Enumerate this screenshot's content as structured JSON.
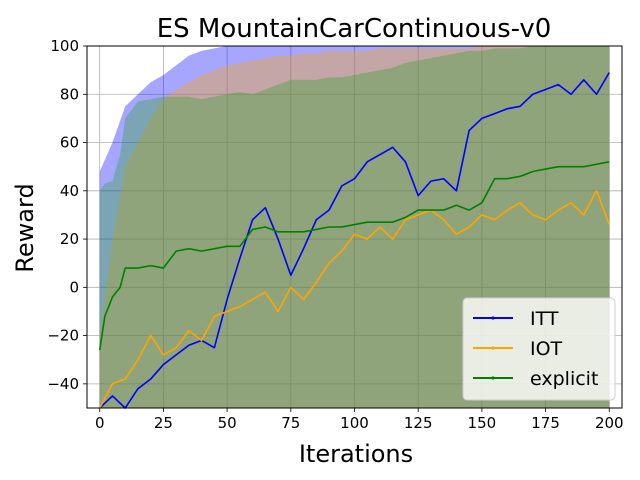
{
  "chart_data": {
    "type": "line",
    "title": "ES MountainCarContinuous-v0",
    "xlabel": "Iterations",
    "ylabel": "Reward",
    "xlim": [
      -5,
      205
    ],
    "ylim": [
      -50,
      100
    ],
    "xticks": [
      0,
      25,
      50,
      75,
      100,
      125,
      150,
      175,
      200
    ],
    "yticks": [
      -40,
      -20,
      0,
      20,
      40,
      60,
      80,
      100
    ],
    "xtick_labels": [
      "0",
      "25",
      "50",
      "75",
      "100",
      "125",
      "150",
      "175",
      "200"
    ],
    "ytick_labels": [
      "−40",
      "−20",
      "0",
      "20",
      "40",
      "60",
      "80",
      "100"
    ],
    "grid": true,
    "legend_position": "lower-right",
    "series": [
      {
        "name": "ITT",
        "color": "#0000ff",
        "band_color": "#0000ff",
        "x": [
          0,
          5,
          10,
          15,
          20,
          25,
          30,
          35,
          40,
          45,
          50,
          55,
          60,
          65,
          70,
          75,
          80,
          85,
          90,
          95,
          100,
          105,
          110,
          115,
          120,
          125,
          130,
          135,
          140,
          145,
          150,
          155,
          160,
          165,
          170,
          175,
          180,
          185,
          190,
          195,
          200
        ],
        "y": [
          -50,
          -45,
          -50,
          -42,
          -38,
          -32,
          -28,
          -24,
          -22,
          -25,
          -5,
          12,
          28,
          33,
          20,
          5,
          16,
          28,
          32,
          42,
          45,
          52,
          55,
          58,
          52,
          38,
          44,
          45,
          40,
          65,
          70,
          72,
          74,
          75,
          80,
          82,
          84,
          80,
          86,
          80,
          89
        ],
        "lower": [
          -50,
          -50,
          -50,
          -50,
          -50,
          -50,
          -50,
          -50,
          -50,
          -50,
          -50,
          -50,
          -50,
          -50,
          -50,
          -50,
          -50,
          -50,
          -50,
          -50,
          -50,
          -50,
          -50,
          -50,
          -50,
          -50,
          -50,
          -50,
          -50,
          -50,
          -50,
          -50,
          -50,
          -50,
          -50,
          -50,
          -50,
          -50,
          -50,
          -50,
          -50
        ],
        "upper": [
          48,
          60,
          75,
          80,
          85,
          88,
          92,
          96,
          98,
          99,
          100,
          100,
          100,
          100,
          100,
          100,
          100,
          100,
          100,
          100,
          100,
          100,
          100,
          100,
          100,
          100,
          100,
          100,
          100,
          100,
          100,
          100,
          100,
          100,
          100,
          100,
          100,
          100,
          100,
          100,
          100
        ]
      },
      {
        "name": "IOT",
        "color": "#ffa500",
        "band_color": "#ffa500",
        "x": [
          0,
          5,
          10,
          15,
          20,
          25,
          30,
          35,
          40,
          45,
          50,
          55,
          60,
          65,
          70,
          75,
          80,
          85,
          90,
          95,
          100,
          105,
          110,
          115,
          120,
          125,
          130,
          135,
          140,
          145,
          150,
          155,
          160,
          165,
          170,
          175,
          180,
          185,
          190,
          195,
          200
        ],
        "y": [
          -50,
          -40,
          -38,
          -30,
          -20,
          -28,
          -25,
          -18,
          -22,
          -12,
          -10,
          -8,
          -5,
          -2,
          -10,
          0,
          -5,
          2,
          10,
          15,
          22,
          20,
          25,
          20,
          28,
          30,
          32,
          28,
          22,
          25,
          30,
          28,
          32,
          35,
          30,
          28,
          32,
          35,
          30,
          40,
          26
        ],
        "lower": [
          -50,
          -50,
          -50,
          -50,
          -50,
          -50,
          -50,
          -50,
          -50,
          -50,
          -50,
          -50,
          -50,
          -50,
          -50,
          -50,
          -50,
          -50,
          -50,
          -50,
          -50,
          -50,
          -50,
          -50,
          -50,
          -50,
          -50,
          -50,
          -50,
          -50,
          -50,
          -50,
          -50,
          -50,
          -50,
          -50,
          -50,
          -50,
          -50,
          -50,
          -50
        ],
        "upper": [
          -20,
          20,
          50,
          60,
          70,
          78,
          82,
          85,
          88,
          90,
          92,
          93,
          94,
          95,
          96,
          96,
          97,
          97,
          98,
          98,
          98,
          98,
          99,
          99,
          99,
          99,
          99,
          99,
          99,
          99,
          100,
          100,
          100,
          100,
          100,
          100,
          100,
          100,
          100,
          100,
          100
        ]
      },
      {
        "name": "explicit",
        "color": "#008000",
        "band_color": "#2ca02c",
        "x": [
          0,
          2,
          5,
          8,
          10,
          15,
          20,
          25,
          30,
          35,
          40,
          45,
          50,
          55,
          60,
          65,
          70,
          75,
          80,
          85,
          90,
          95,
          100,
          105,
          110,
          115,
          120,
          125,
          130,
          135,
          140,
          145,
          150,
          155,
          160,
          165,
          170,
          175,
          180,
          185,
          190,
          195,
          200
        ],
        "y": [
          -26,
          -12,
          -4,
          0,
          8,
          8,
          9,
          8,
          15,
          16,
          15,
          16,
          17,
          17,
          24,
          25,
          23,
          23,
          23,
          24,
          25,
          25,
          26,
          27,
          27,
          27,
          29,
          32,
          32,
          32,
          34,
          32,
          35,
          45,
          45,
          46,
          48,
          49,
          50,
          50,
          50,
          51,
          52
        ],
        "lower": [
          -50,
          -50,
          -50,
          -50,
          -50,
          -50,
          -50,
          -50,
          -50,
          -50,
          -50,
          -50,
          -50,
          -50,
          -50,
          -50,
          -50,
          -50,
          -50,
          -50,
          -50,
          -50,
          -50,
          -50,
          -50,
          -50,
          -50,
          -50,
          -50,
          -50,
          -50,
          -50,
          -50,
          -50,
          -50,
          -50,
          -50,
          -50,
          -50,
          -50,
          -50,
          -50,
          -50
        ],
        "upper": [
          40,
          43,
          44,
          55,
          70,
          77,
          78,
          79,
          79,
          79,
          78,
          79,
          80,
          81,
          80,
          82,
          84,
          86,
          86,
          86,
          87,
          87,
          88,
          89,
          90,
          91,
          93,
          94,
          95,
          96,
          97,
          98,
          98,
          99,
          99,
          99,
          100,
          100,
          100,
          100,
          100,
          100,
          100
        ]
      }
    ]
  }
}
